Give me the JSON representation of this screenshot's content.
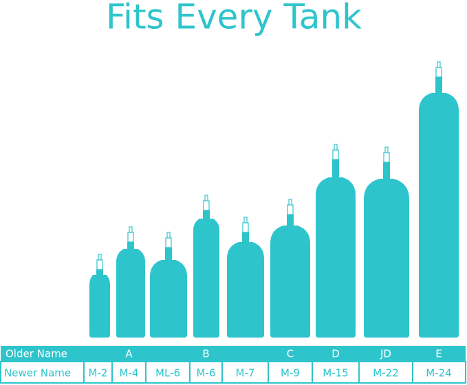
{
  "title": "Fits Every Tank",
  "table": {
    "row_labels": [
      "Older Name",
      "Newer Name"
    ],
    "columns": [
      {
        "newer": "M-2"
      },
      {
        "older": "A",
        "newer": "M-4"
      },
      {
        "newer": "ML-6"
      },
      {
        "older": "B",
        "newer": "M-6"
      },
      {
        "newer": "M-7"
      },
      {
        "older": "C",
        "newer": "M-9"
      },
      {
        "older": "D",
        "newer": "M-15"
      },
      {
        "older": "JD",
        "newer": "M-22"
      },
      {
        "older": "E",
        "newer": "M-24"
      }
    ]
  }
}
